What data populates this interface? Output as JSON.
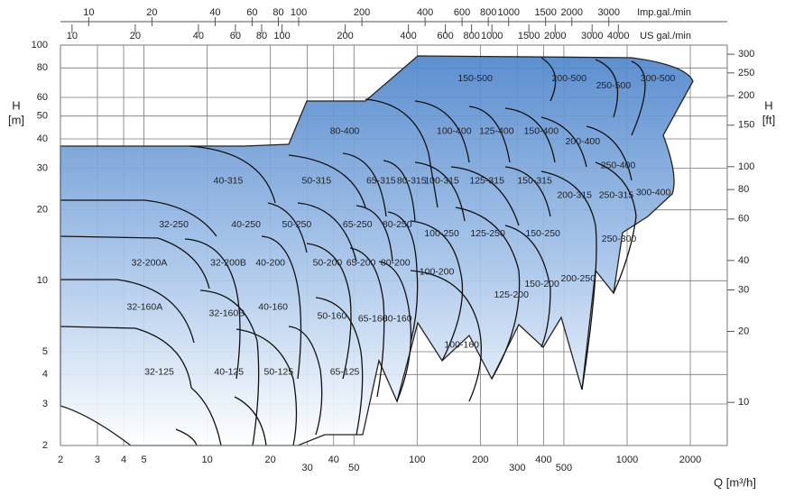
{
  "chart_data": {
    "type": "region-map",
    "x_label": "Q [m³/h]",
    "y_label": [
      "H",
      "[m]"
    ],
    "y2_label": [
      "H",
      "[ft]"
    ],
    "log_x": true,
    "log_y": true,
    "grid": true,
    "color": "#5b8fd1",
    "xlim": [
      2,
      3000
    ],
    "xticks": [
      2,
      3,
      4,
      5,
      10,
      20,
      30,
      40,
      50,
      100,
      200,
      300,
      400,
      500,
      1000,
      2000
    ],
    "ylim": [
      2,
      100
    ],
    "yticks": [
      2,
      3,
      4,
      5,
      10,
      20,
      30,
      40,
      50,
      60,
      80,
      100
    ],
    "y2lim": [
      6.562,
      328.1
    ],
    "y2ticks": [
      10,
      20,
      30,
      40,
      60,
      80,
      100,
      150,
      200,
      250,
      300
    ],
    "top_axes": [
      {
        "label": "Imp.gal./min",
        "lim": [
          7.332,
          10998
        ],
        "ticks": [
          10,
          20,
          40,
          60,
          80,
          100,
          200,
          400,
          600,
          800,
          1000,
          1500,
          2000,
          3000
        ]
      },
      {
        "label": "US gal./min",
        "lim": [
          8.806,
          13209
        ],
        "ticks": [
          10,
          20,
          40,
          60,
          80,
          100,
          200,
          400,
          600,
          800,
          1000,
          1500,
          2000,
          3000,
          4000
        ]
      }
    ],
    "regions": [
      {
        "label": "150-500",
        "x": 189,
        "y": 72.1
      },
      {
        "label": "200-500",
        "x": 530,
        "y": 72.1
      },
      {
        "label": "250-500",
        "x": 861,
        "y": 67.1
      },
      {
        "label": "300-500",
        "x": 1402,
        "y": 72.1
      },
      {
        "label": "80-400",
        "x": 45.2,
        "y": 43.1
      },
      {
        "label": "100-400",
        "x": 150,
        "y": 43.1
      },
      {
        "label": "125-400",
        "x": 239,
        "y": 43.1
      },
      {
        "label": "150-400",
        "x": 390,
        "y": 43.1
      },
      {
        "label": "200-400",
        "x": 615,
        "y": 38.8
      },
      {
        "label": "250-400",
        "x": 906,
        "y": 30.8
      },
      {
        "label": "300-400",
        "x": 1334,
        "y": 23.6
      },
      {
        "label": "40-315",
        "x": 12.6,
        "y": 26.5
      },
      {
        "label": "50-315",
        "x": 33.2,
        "y": 26.5
      },
      {
        "label": "65-315",
        "x": 67.3,
        "y": 26.5
      },
      {
        "label": "80-315",
        "x": 94.2,
        "y": 26.5
      },
      {
        "label": "100-315",
        "x": 131,
        "y": 26.5
      },
      {
        "label": "125-315",
        "x": 215,
        "y": 26.5
      },
      {
        "label": "150-315",
        "x": 363,
        "y": 26.5
      },
      {
        "label": "200-315",
        "x": 562,
        "y": 23
      },
      {
        "label": "250-315",
        "x": 888,
        "y": 23
      },
      {
        "label": "32-250",
        "x": 6.93,
        "y": 17.3
      },
      {
        "label": "40-250",
        "x": 15.3,
        "y": 17.3
      },
      {
        "label": "50-250",
        "x": 26.7,
        "y": 17.3
      },
      {
        "label": "65-250",
        "x": 52,
        "y": 17.3
      },
      {
        "label": "80-250",
        "x": 80.4,
        "y": 17.3
      },
      {
        "label": "100-250",
        "x": 131,
        "y": 15.8
      },
      {
        "label": "125-250",
        "x": 217,
        "y": 15.8
      },
      {
        "label": "150-250",
        "x": 397,
        "y": 15.8
      },
      {
        "label": "250-300",
        "x": 915,
        "y": 15
      },
      {
        "label": "32-200A",
        "x": 5.3,
        "y": 11.9
      },
      {
        "label": "32-200B",
        "x": 12.6,
        "y": 11.9
      },
      {
        "label": "40-200",
        "x": 20,
        "y": 11.9
      },
      {
        "label": "50-200",
        "x": 37.4,
        "y": 11.9
      },
      {
        "label": "65-200",
        "x": 54,
        "y": 11.9
      },
      {
        "label": "80-200",
        "x": 78.8,
        "y": 11.9
      },
      {
        "label": "100-200",
        "x": 124,
        "y": 10.9
      },
      {
        "label": "125-200",
        "x": 281,
        "y": 8.68
      },
      {
        "label": "150-200",
        "x": 393,
        "y": 9.65
      },
      {
        "label": "200-250",
        "x": 585,
        "y": 10.2
      },
      {
        "label": "32-160A",
        "x": 5.04,
        "y": 7.73
      },
      {
        "label": "32-160B",
        "x": 12.4,
        "y": 7.27
      },
      {
        "label": "40-160",
        "x": 20.6,
        "y": 7.73
      },
      {
        "label": "50-160",
        "x": 39.3,
        "y": 7.08
      },
      {
        "label": "65-160",
        "x": 61.5,
        "y": 6.89
      },
      {
        "label": "80-160",
        "x": 80.4,
        "y": 6.89
      },
      {
        "label": "100-160",
        "x": 163,
        "y": 5.33
      },
      {
        "label": "32-125",
        "x": 5.91,
        "y": 4.09
      },
      {
        "label": "40-125",
        "x": 12.7,
        "y": 4.09
      },
      {
        "label": "50-125",
        "x": 21.9,
        "y": 4.09
      },
      {
        "label": "65-125",
        "x": 45.2,
        "y": 4.09
      }
    ]
  }
}
